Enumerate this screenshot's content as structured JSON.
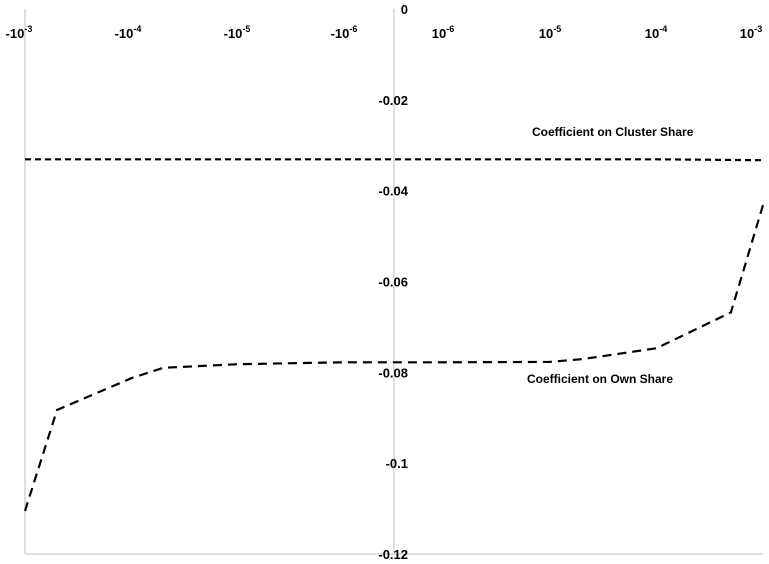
{
  "chart_data": {
    "type": "line",
    "x_tick_labels": [
      {
        "base": "-10",
        "exp": "-3"
      },
      {
        "base": "-10",
        "exp": "-4"
      },
      {
        "base": "-10",
        "exp": "-5"
      },
      {
        "base": "-10",
        "exp": "-6"
      },
      {
        "base": "10",
        "exp": "-6"
      },
      {
        "base": "10",
        "exp": "-5"
      },
      {
        "base": "10",
        "exp": "-4"
      },
      {
        "base": "10",
        "exp": "-3"
      }
    ],
    "y_ticks": [
      "0",
      "-0.02",
      "-0.04",
      "-0.06",
      "-0.08",
      "-0.1",
      "-0.12"
    ],
    "y_tick_values": [
      0,
      -0.02,
      -0.04,
      -0.06,
      -0.08,
      -0.1,
      -0.12
    ],
    "ylim": [
      -0.12,
      0
    ],
    "grid": false,
    "line_style": "dashed",
    "series": [
      {
        "name": "Coefficient on Cluster Share",
        "x": [
          -0.001,
          -0.0001,
          -1e-05,
          -1e-06,
          1e-06,
          1e-05,
          0.0001,
          0.001
        ],
        "y": [
          -0.0331,
          -0.0331,
          -0.0331,
          -0.0331,
          -0.0331,
          -0.0331,
          -0.0331,
          -0.0333
        ]
      },
      {
        "name": "Coefficient on Own Share",
        "x": [
          -0.001,
          -0.0005,
          -0.0001,
          -5e-05,
          -1e-05,
          -1e-06,
          1e-06,
          1e-05,
          2e-05,
          0.0001,
          0.0005,
          0.001
        ],
        "y": [
          -0.1105,
          -0.0883,
          -0.0813,
          -0.079,
          -0.0782,
          -0.0778,
          -0.0778,
          -0.0777,
          -0.0771,
          -0.0747,
          -0.0668,
          -0.0432
        ]
      }
    ],
    "annotations": [
      "Coefficient on Cluster Share",
      "Coefficient on Own Share"
    ]
  }
}
